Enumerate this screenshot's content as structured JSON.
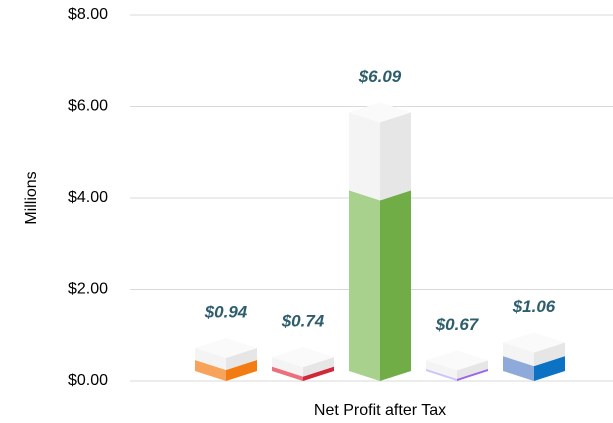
{
  "chart_data": {
    "type": "bar3d",
    "categories": [
      "Net Profit after Tax"
    ],
    "y_label": "Millions",
    "series": [
      {
        "color": [
          "#f7a35c",
          "#f27c12"
        ],
        "values": [
          0.94
        ],
        "value_labels": [
          "$0.94"
        ]
      },
      {
        "color": [
          "#ec6f7c",
          "#d0283a"
        ],
        "values": [
          0.74
        ],
        "value_labels": [
          "$0.74"
        ]
      },
      {
        "color": [
          "#a9d18e",
          "#70ad47"
        ],
        "values": [
          6.09
        ],
        "value_labels": [
          "$6.09"
        ]
      },
      {
        "color": [
          "#cbc6f7",
          "#9a66ee"
        ],
        "values": [
          0.67
        ],
        "value_labels": [
          "$0.67"
        ]
      },
      {
        "color": [
          "#8eaadb",
          "#0b72c4"
        ],
        "values": [
          1.06
        ],
        "value_labels": [
          "$1.06"
        ]
      }
    ],
    "ylim": [
      0,
      8
    ],
    "yticks": [
      {
        "value": 0,
        "label": "$0.00"
      },
      {
        "value": 2,
        "label": "$2.00"
      },
      {
        "value": 4,
        "label": "$4.00"
      },
      {
        "value": 6,
        "label": "$6.00"
      },
      {
        "value": 8,
        "label": "$8.00"
      }
    ],
    "grid": true
  }
}
